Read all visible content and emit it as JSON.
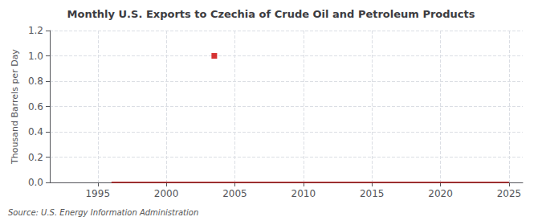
{
  "chart_data": {
    "type": "line",
    "title": "Monthly U.S. Exports to Czechia of Crude Oil and Petroleum Products",
    "ylabel": "Thousand Barrels per Day",
    "annotation": "Source: U.S. Energy Information Administration",
    "grid": true,
    "xlim": [
      1991.5,
      2026
    ],
    "xticks": [
      1995,
      2000,
      2005,
      2010,
      2015,
      2020,
      2025
    ],
    "ylim": [
      0.0,
      1.2
    ],
    "yticks": [
      {
        "value": 0.0,
        "label": "0.0"
      },
      0.2,
      0.4,
      0.6,
      0.8,
      {
        "value": 1.0,
        "label": "1.0"
      },
      1.2
    ],
    "series": [
      {
        "type": "line",
        "color": "#aa0000",
        "x": [
          1996,
          1997,
          1998,
          1999,
          2000,
          2001,
          2002,
          2003,
          2003.5,
          2004,
          2005,
          2006,
          2007,
          2008,
          2009,
          2010,
          2011,
          2012,
          2013,
          2014,
          2015,
          2016,
          2017,
          2018,
          2019,
          2020,
          2021,
          2022,
          2023,
          2024,
          2025
        ],
        "values": [
          0,
          0,
          0,
          0,
          0,
          0,
          0,
          0,
          0,
          0,
          0,
          0,
          0,
          0,
          0,
          0,
          0,
          0,
          0,
          0,
          0,
          0,
          0,
          0,
          0,
          0,
          0,
          0,
          0,
          0,
          0
        ]
      },
      {
        "type": "scatter",
        "color": "#cc0000",
        "marker": "square",
        "x": [
          2003.5
        ],
        "values": [
          1.0
        ]
      }
    ]
  }
}
